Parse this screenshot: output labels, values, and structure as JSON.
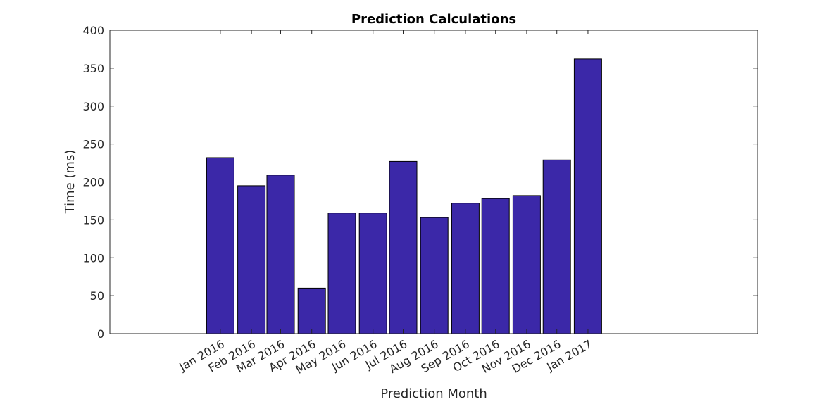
{
  "chart_data": {
    "type": "bar",
    "title": "Prediction Calculations",
    "xlabel": "Prediction Month",
    "ylabel": "Time (ms)",
    "categories": [
      "Jan 2016",
      "Feb 2016",
      "Mar 2016",
      "Apr 2016",
      "May 2016",
      "Jun 2016",
      "Jul 2016",
      "Aug 2016",
      "Sep 2016",
      "Oct 2016",
      "Nov 2016",
      "Dec 2016",
      "Jan 2017"
    ],
    "values": [
      232,
      195,
      209,
      60,
      159,
      159,
      227,
      153,
      172,
      178,
      182,
      229,
      362
    ],
    "x_dates": [
      "2016-01-01",
      "2016-02-01",
      "2016-03-01",
      "2016-04-01",
      "2016-05-01",
      "2016-06-01",
      "2016-07-01",
      "2016-08-01",
      "2016-09-01",
      "2016-10-01",
      "2016-11-01",
      "2016-12-01",
      "2017-01-01"
    ],
    "xlim": [
      "2015-09-13",
      "2017-06-19"
    ],
    "ylim": [
      0,
      400
    ],
    "yticks": [
      0,
      50,
      100,
      150,
      200,
      250,
      300,
      350,
      400
    ],
    "bar_color": "#3b28a8",
    "grid": false,
    "legend": "none"
  }
}
